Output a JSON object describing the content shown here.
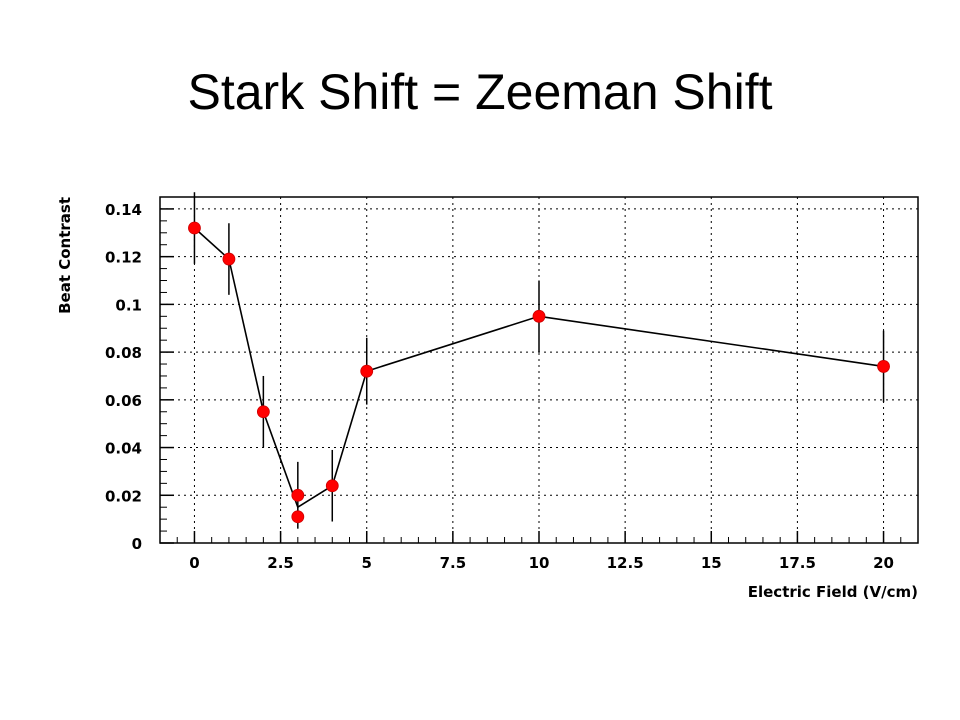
{
  "slide": {
    "title": "Stark Shift = Zeeman Shift"
  },
  "chart_data": {
    "type": "scatter",
    "xlabel": "Electric Field (V/cm)",
    "ylabel": "Beat Contrast",
    "xlim": [
      -1,
      21
    ],
    "ylim": [
      0,
      0.145
    ],
    "xticks": [
      0,
      2.5,
      5,
      7.5,
      10,
      12.5,
      15,
      17.5,
      20
    ],
    "xtick_labels": [
      "0",
      "2.5",
      "5",
      "7.5",
      "10",
      "12.5",
      "15",
      "17.5",
      "20"
    ],
    "yticks": [
      0,
      0.02,
      0.04,
      0.06,
      0.08,
      0.1,
      0.12,
      0.14
    ],
    "ytick_labels": [
      "0",
      "0.02",
      "0.04",
      "0.06",
      "0.08",
      "0.1",
      "0.12",
      "0.14"
    ],
    "grid": true,
    "marker_color": "#ff0000",
    "line_color": "#000000",
    "series": [
      {
        "points": [
          {
            "x": 0,
            "y": 0.132,
            "err": 0.015
          },
          {
            "x": 1,
            "y": 0.119,
            "err": 0.015
          },
          {
            "x": 2,
            "y": 0.055,
            "err": 0.015
          },
          {
            "x": 3,
            "y": 0.02,
            "err": 0.014
          },
          {
            "x": 3,
            "y": 0.011,
            "err": 0.0
          },
          {
            "x": 4,
            "y": 0.024,
            "err": 0.015
          },
          {
            "x": 5,
            "y": 0.072,
            "err": 0.014
          },
          {
            "x": 10,
            "y": 0.095,
            "err": 0.015
          },
          {
            "x": 20,
            "y": 0.074,
            "err": 0.015
          }
        ],
        "line": [
          {
            "x": 0,
            "y": 0.132
          },
          {
            "x": 1,
            "y": 0.119
          },
          {
            "x": 2,
            "y": 0.055
          },
          {
            "x": 3,
            "y": 0.015
          },
          {
            "x": 4,
            "y": 0.024
          },
          {
            "x": 5,
            "y": 0.072
          },
          {
            "x": 10,
            "y": 0.095
          },
          {
            "x": 20,
            "y": 0.074
          }
        ]
      }
    ]
  }
}
